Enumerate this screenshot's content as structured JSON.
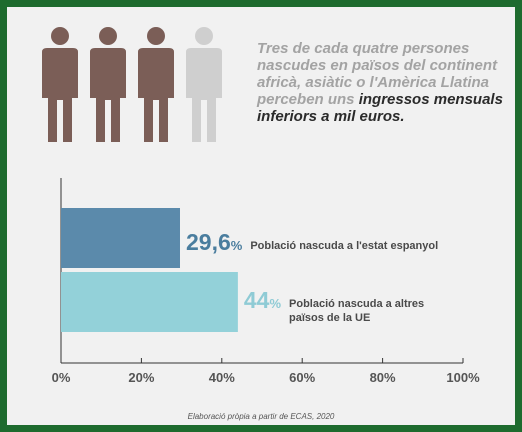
{
  "headline": {
    "text_before": "Tres de cada quatre persones nascudes en països del continent africà, asiàtic o l'Amèrica Llatina perceben uns ",
    "text_highlight": "ingressos mensuals inferiors a mil euros."
  },
  "icons": [
    "person-icon",
    "person-icon",
    "person-icon",
    "person-icon"
  ],
  "chart_data": {
    "type": "bar",
    "orientation": "horizontal",
    "title": "",
    "xlabel": "",
    "ylabel": "",
    "xlim": [
      0,
      100
    ],
    "ticks": [
      "0%",
      "20%",
      "40%",
      "60%",
      "80%",
      "100%"
    ],
    "categories": [
      "Població nascuda a l'estat espanyol",
      "Població nascuda a altres països de la UE"
    ],
    "values": [
      29.6,
      44
    ],
    "value_labels": [
      "29,6",
      "44"
    ],
    "value_suffix": "%",
    "category_lines": [
      [
        "Població nascuda a l'estat espanyol"
      ],
      [
        "Població nascuda a altres",
        "països de la UE"
      ]
    ],
    "colors": [
      "#5b8aab",
      "#93d1d9"
    ],
    "label_colors": [
      "#4a7d9e",
      "#8fcbd5"
    ],
    "icon_colors": {
      "filled": "#7b5e57",
      "empty": "#cfcfcf"
    }
  },
  "source": "Elaboració pròpia a partir de ECAS, 2020"
}
